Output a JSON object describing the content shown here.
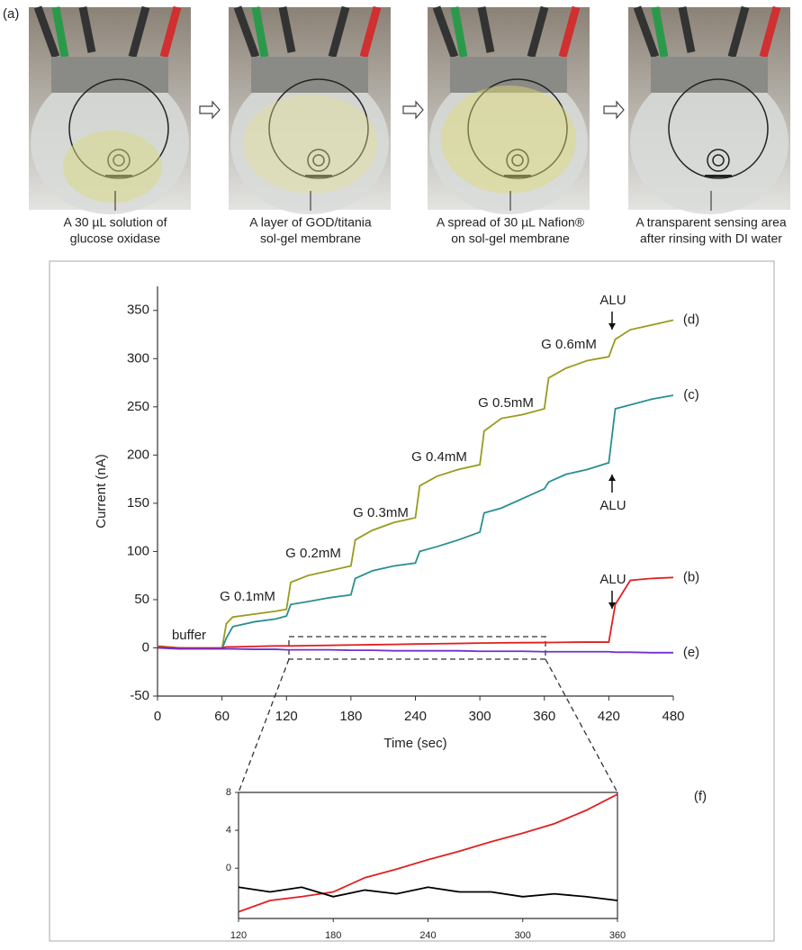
{
  "label": "(a)",
  "photos": [
    {
      "caption": [
        "A 30 µL solution of",
        "glucose oxidase"
      ]
    },
    {
      "caption": [
        "A layer of GOD/titania",
        "sol-gel membrane"
      ]
    },
    {
      "caption": [
        "A spread of 30 µL Nafion®",
        "on sol-gel membrane"
      ]
    },
    {
      "caption": [
        "A transparent sensing area",
        "after rinsing with DI water"
      ]
    }
  ],
  "chart_data": [
    {
      "type": "line",
      "xlabel": "Time (sec)",
      "ylabel": "Current (nA)",
      "xlim": [
        0,
        480
      ],
      "ylim": [
        -50,
        375
      ],
      "xticks": [
        0,
        60,
        120,
        180,
        240,
        300,
        360,
        420,
        480
      ],
      "yticks": [
        -50,
        0,
        50,
        100,
        150,
        200,
        250,
        300,
        350
      ],
      "x": [
        0,
        20,
        40,
        60,
        64,
        70,
        90,
        110,
        120,
        124,
        140,
        160,
        180,
        184,
        200,
        220,
        240,
        244,
        260,
        280,
        300,
        304,
        320,
        340,
        360,
        364,
        380,
        400,
        420,
        426,
        440,
        460,
        480
      ],
      "series": [
        {
          "name": "(d)",
          "color": "#9a9a1e",
          "values": [
            2,
            0,
            -1,
            -1,
            25,
            32,
            35,
            38,
            40,
            68,
            75,
            80,
            85,
            112,
            122,
            130,
            135,
            168,
            178,
            185,
            190,
            225,
            238,
            242,
            248,
            280,
            290,
            298,
            302,
            320,
            330,
            335,
            340
          ]
        },
        {
          "name": "(c)",
          "color": "#2a8f8f",
          "values": [
            1,
            0,
            -1,
            -1,
            10,
            22,
            27,
            30,
            33,
            45,
            48,
            52,
            55,
            72,
            80,
            85,
            88,
            100,
            105,
            112,
            120,
            140,
            145,
            155,
            165,
            172,
            180,
            185,
            192,
            248,
            252,
            258,
            262
          ]
        },
        {
          "name": "(b)",
          "color": "#e02020",
          "values": [
            1,
            0,
            0,
            0,
            1,
            1,
            1.5,
            2,
            2,
            2,
            2.3,
            2.6,
            3,
            3,
            3.3,
            3.6,
            4,
            4,
            4.3,
            4.6,
            5,
            5,
            5.2,
            5.4,
            5.5,
            5.6,
            5.8,
            6,
            6,
            45,
            70,
            72,
            73
          ]
        },
        {
          "name": "(e)",
          "color": "#7030d0",
          "values": [
            0,
            -1,
            -1,
            -1,
            -1,
            -1,
            -1.5,
            -1.5,
            -2,
            -2,
            -2,
            -2,
            -2.5,
            -2.5,
            -2.5,
            -3,
            -3,
            -3,
            -3,
            -3,
            -3.5,
            -3.5,
            -3.5,
            -3.5,
            -4,
            -4,
            -4,
            -4,
            -4,
            -4.5,
            -4.5,
            -5,
            -5
          ]
        }
      ],
      "annotations": [
        "buffer",
        "G 0.1mM",
        "G 0.2mM",
        "G 0.3mM",
        "G 0.4mM",
        "G 0.5mM",
        "G 0.6mM",
        "ALU",
        "ALU",
        "ALU"
      ]
    },
    {
      "type": "line",
      "label": "(f)",
      "xlim": [
        120,
        360
      ],
      "ylim": [
        -5.3,
        8
      ],
      "xticks": [
        120,
        180,
        240,
        300,
        360
      ],
      "yticks": [
        0,
        4,
        8
      ],
      "x": [
        120,
        140,
        160,
        180,
        200,
        220,
        240,
        260,
        280,
        300,
        320,
        340,
        360
      ],
      "series": [
        {
          "color": "#e02020",
          "values": [
            -4.6,
            -3.4,
            -3.0,
            -2.5,
            -1.0,
            -0.1,
            0.9,
            1.8,
            2.8,
            3.7,
            4.7,
            6.1,
            7.8
          ]
        },
        {
          "color": "#000000",
          "values": [
            -2,
            -2.5,
            -2,
            -3,
            -2.3,
            -2.7,
            -2,
            -2.5,
            -2.5,
            -3,
            -2.7,
            -3,
            -3.4
          ]
        }
      ]
    }
  ]
}
